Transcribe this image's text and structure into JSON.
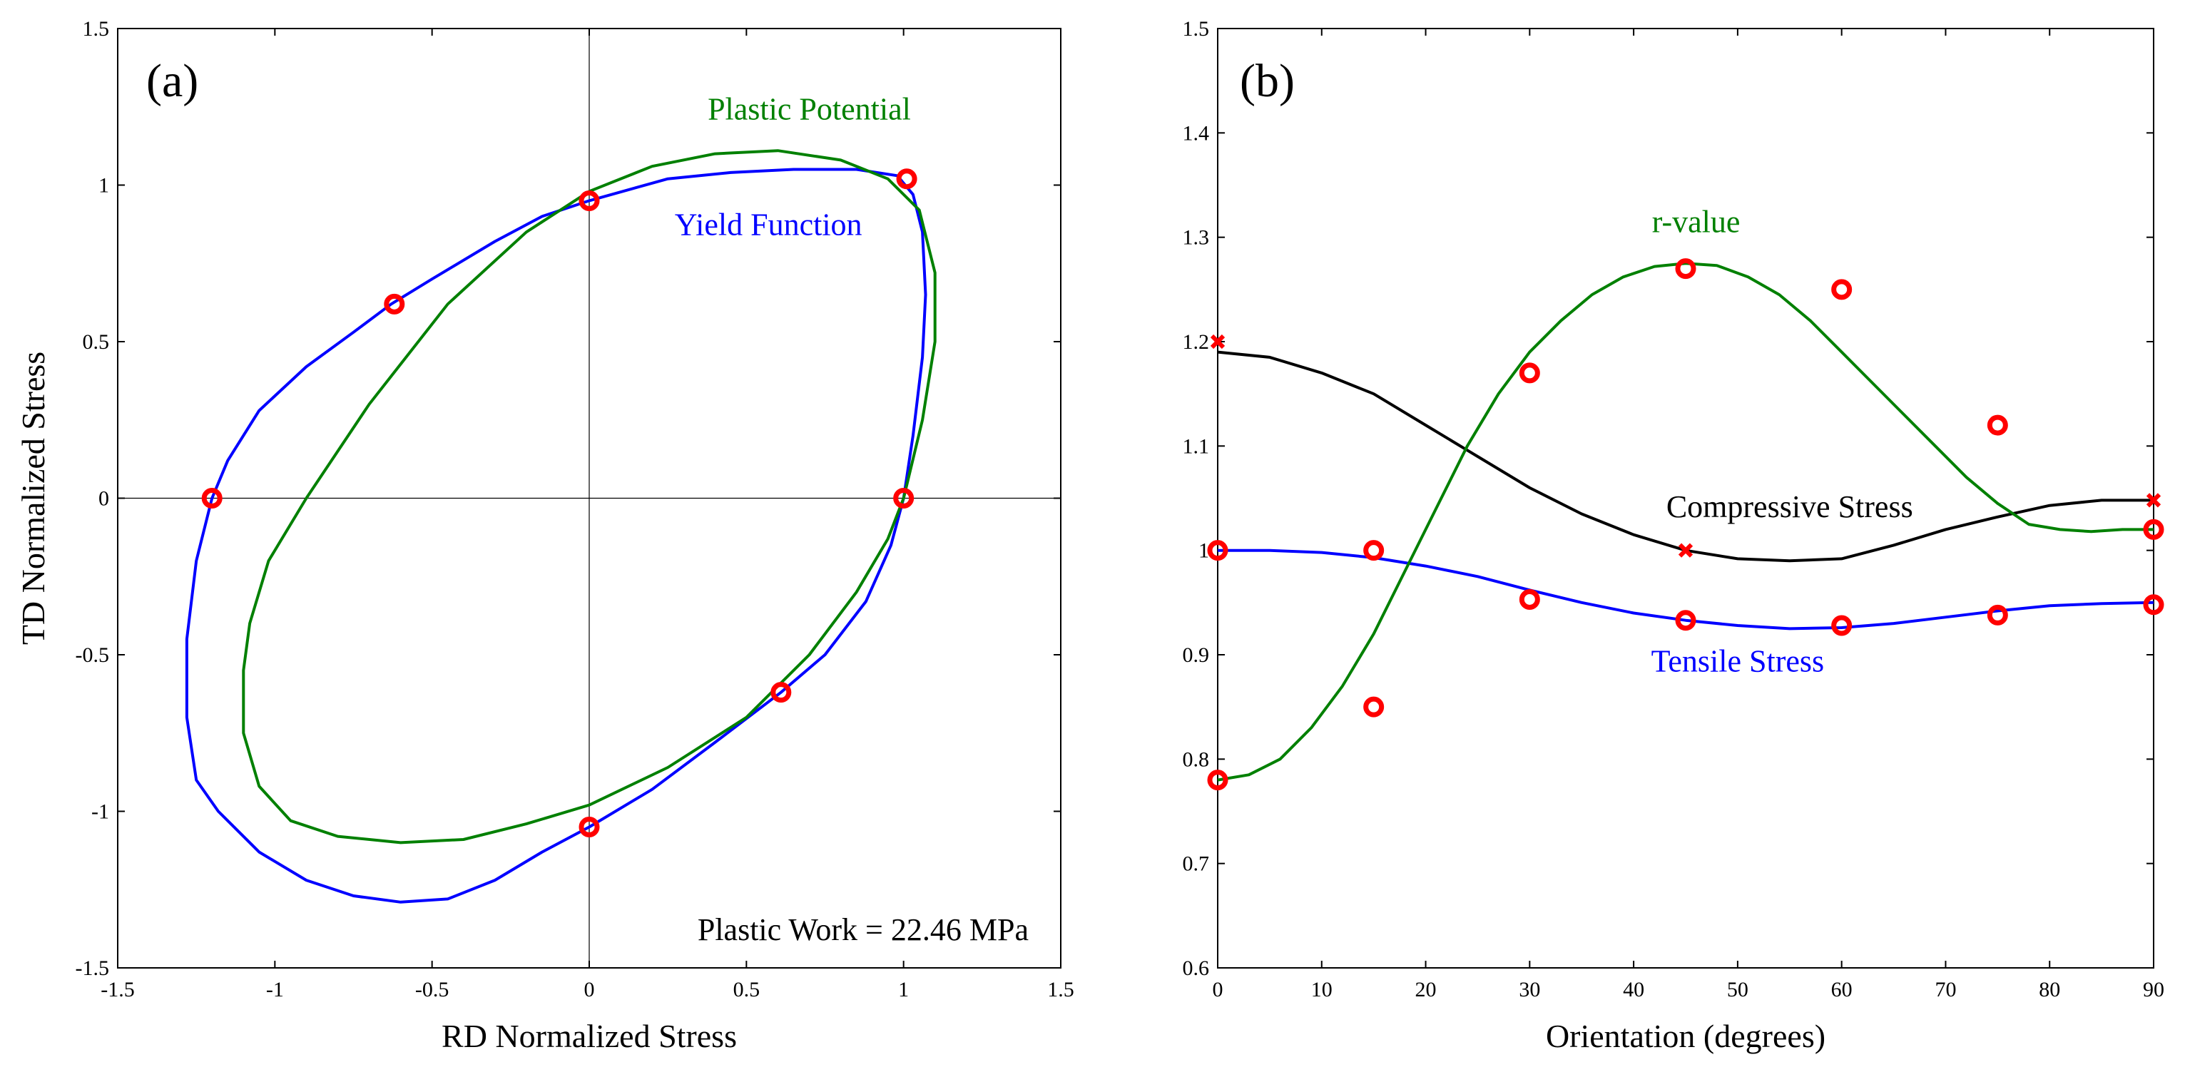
{
  "colors": {
    "yield": "#0000ff",
    "potential": "#008000",
    "compressive": "#000000",
    "tensile": "#0000ff",
    "rvalue": "#008000",
    "markers": "#ff0000",
    "axes": "#000000"
  },
  "chart_data": [
    {
      "type": "line",
      "panel_label": "(a)",
      "xlabel": "RD Normalized Stress",
      "ylabel": "TD Normalized Stress",
      "xlim": [
        -1.5,
        1.5
      ],
      "ylim": [
        -1.5,
        1.5
      ],
      "xticks": [
        -1.5,
        -1,
        -0.5,
        0,
        0.5,
        1,
        1.5
      ],
      "yticks": [
        -1.5,
        -1,
        -0.5,
        0,
        0.5,
        1,
        1.5
      ],
      "xtick_labels": [
        "-1.5",
        "-1",
        "-0.5",
        "0",
        "0.5",
        "1",
        "1.5"
      ],
      "ytick_labels": [
        "-1.5",
        "-1",
        "-0.5",
        "0",
        "0.5",
        "1",
        "1.5"
      ],
      "crosshair": true,
      "annotation": "Plastic Work = 22.46 MPa",
      "series": [
        {
          "name": "Yield Function",
          "color_key": "yield",
          "closed": true,
          "x": [
            1.0,
            1.03,
            1.06,
            1.07,
            1.06,
            1.03,
            0.98,
            0.85,
            0.65,
            0.45,
            0.25,
            0.0,
            -0.15,
            -0.3,
            -0.5,
            -0.63,
            -0.75,
            -0.9,
            -1.05,
            -1.15,
            -1.2,
            -1.25,
            -1.28,
            -1.28,
            -1.25,
            -1.18,
            -1.05,
            -0.9,
            -0.75,
            -0.6,
            -0.45,
            -0.3,
            -0.15,
            0.0,
            0.2,
            0.4,
            0.61,
            0.75,
            0.88,
            0.96,
            1.0
          ],
          "y": [
            0.0,
            0.2,
            0.45,
            0.65,
            0.85,
            0.97,
            1.03,
            1.05,
            1.05,
            1.04,
            1.02,
            0.95,
            0.9,
            0.82,
            0.7,
            0.62,
            0.53,
            0.42,
            0.28,
            0.12,
            0.0,
            -0.2,
            -0.45,
            -0.7,
            -0.9,
            -1.0,
            -1.13,
            -1.22,
            -1.27,
            -1.29,
            -1.28,
            -1.22,
            -1.13,
            -1.05,
            -0.93,
            -0.78,
            -0.62,
            -0.5,
            -0.33,
            -0.15,
            0.0
          ]
        },
        {
          "name": "Plastic Potential",
          "color_key": "potential",
          "closed": true,
          "x": [
            1.0,
            1.06,
            1.1,
            1.1,
            1.05,
            0.95,
            0.8,
            0.6,
            0.4,
            0.2,
            0.0,
            -0.2,
            -0.45,
            -0.7,
            -0.9,
            -1.02,
            -1.08,
            -1.1,
            -1.1,
            -1.05,
            -0.95,
            -0.8,
            -0.6,
            -0.4,
            -0.2,
            0.0,
            0.25,
            0.5,
            0.7,
            0.85,
            0.95,
            1.0
          ],
          "y": [
            0.0,
            0.25,
            0.5,
            0.72,
            0.92,
            1.02,
            1.08,
            1.11,
            1.1,
            1.06,
            0.98,
            0.85,
            0.62,
            0.3,
            0.0,
            -0.2,
            -0.4,
            -0.55,
            -0.75,
            -0.92,
            -1.03,
            -1.08,
            -1.1,
            -1.09,
            -1.04,
            -0.98,
            -0.86,
            -0.7,
            -0.5,
            -0.3,
            -0.13,
            0.0
          ]
        }
      ],
      "markers": {
        "style": "open-circle",
        "x": [
          1.0,
          1.01,
          0.0,
          -0.62,
          -1.2,
          0.0,
          0.61
        ],
        "y": [
          0.0,
          1.02,
          0.95,
          0.62,
          0.0,
          -1.05,
          -0.62
        ]
      },
      "labels": [
        {
          "text": "Plastic Potential",
          "color_key": "potential",
          "x": 0.7,
          "y": 1.21
        },
        {
          "text": "Yield Function",
          "color_key": "yield",
          "x": 0.57,
          "y": 0.84
        }
      ]
    },
    {
      "type": "line",
      "panel_label": "(b)",
      "xlabel": "Orientation (degrees)",
      "ylabel": "",
      "xlim": [
        0,
        90
      ],
      "ylim": [
        0.6,
        1.5
      ],
      "xticks": [
        0,
        10,
        20,
        30,
        40,
        50,
        60,
        70,
        80,
        90
      ],
      "yticks": [
        0.6,
        0.7,
        0.8,
        0.9,
        1.0,
        1.1,
        1.2,
        1.3,
        1.4,
        1.5
      ],
      "xtick_labels": [
        "0",
        "10",
        "20",
        "30",
        "40",
        "50",
        "60",
        "70",
        "80",
        "90"
      ],
      "ytick_labels": [
        "0.6",
        "0.7",
        "0.8",
        "0.9",
        "1",
        "1.1",
        "1.2",
        "1.3",
        "1.4",
        "1.5"
      ],
      "series": [
        {
          "name": "Compressive Stress",
          "color_key": "compressive",
          "x": [
            0,
            5,
            10,
            15,
            20,
            25,
            30,
            35,
            40,
            45,
            50,
            55,
            60,
            65,
            70,
            75,
            80,
            85,
            90
          ],
          "y": [
            1.19,
            1.185,
            1.17,
            1.15,
            1.12,
            1.09,
            1.06,
            1.035,
            1.015,
            1.0,
            0.992,
            0.99,
            0.992,
            1.005,
            1.02,
            1.032,
            1.043,
            1.048,
            1.048
          ]
        },
        {
          "name": "Tensile Stress",
          "color_key": "tensile",
          "x": [
            0,
            5,
            10,
            15,
            20,
            25,
            30,
            35,
            40,
            45,
            50,
            55,
            60,
            65,
            70,
            75,
            80,
            85,
            90
          ],
          "y": [
            1.0,
            1.0,
            0.998,
            0.993,
            0.985,
            0.975,
            0.962,
            0.95,
            0.94,
            0.933,
            0.928,
            0.925,
            0.926,
            0.93,
            0.936,
            0.942,
            0.947,
            0.949,
            0.95
          ]
        },
        {
          "name": "r-value",
          "color_key": "rvalue",
          "x": [
            0,
            3,
            6,
            9,
            12,
            15,
            18,
            21,
            24,
            27,
            30,
            33,
            36,
            39,
            42,
            45,
            48,
            51,
            54,
            57,
            60,
            63,
            66,
            69,
            72,
            75,
            78,
            81,
            84,
            87,
            90
          ],
          "y": [
            0.78,
            0.785,
            0.8,
            0.83,
            0.87,
            0.92,
            0.98,
            1.04,
            1.1,
            1.15,
            1.19,
            1.22,
            1.245,
            1.262,
            1.272,
            1.275,
            1.273,
            1.262,
            1.245,
            1.22,
            1.19,
            1.16,
            1.13,
            1.1,
            1.07,
            1.045,
            1.025,
            1.02,
            1.018,
            1.02,
            1.02
          ]
        }
      ],
      "markers_circles": {
        "x": [
          0,
          15,
          30,
          45,
          60,
          75,
          90,
          0,
          15,
          30,
          45,
          60,
          75,
          90
        ],
        "y": [
          0.78,
          0.85,
          1.17,
          1.27,
          1.25,
          1.12,
          1.02,
          1.0,
          1.0,
          0.953,
          0.933,
          0.928,
          0.938,
          0.948
        ]
      },
      "markers_crosses": {
        "x": [
          0,
          45,
          90
        ],
        "y": [
          1.2,
          1.0,
          1.048
        ]
      },
      "labels": [
        {
          "text": "r-value",
          "color_key": "rvalue",
          "x": 46,
          "y": 1.305
        },
        {
          "text": "Compressive Stress",
          "color_key": "compressive",
          "x": 55,
          "y": 1.032
        },
        {
          "text": "Tensile Stress",
          "color_key": "tensile",
          "x": 50,
          "y": 0.884
        }
      ]
    }
  ]
}
